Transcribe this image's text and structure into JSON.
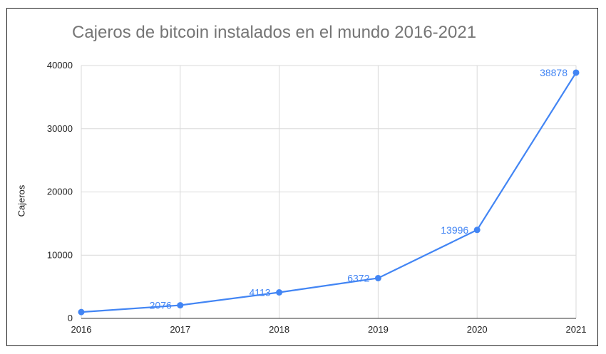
{
  "chart_data": {
    "type": "line",
    "title": "Cajeros de bitcoin instalados en el mundo 2016-2021",
    "xlabel": "",
    "ylabel": "Cajeros",
    "categories": [
      "2016",
      "2017",
      "2018",
      "2019",
      "2020",
      "2021"
    ],
    "series": [
      {
        "values": [
          1000,
          2076,
          4113,
          6372,
          13996,
          38878
        ],
        "data_labels": [
          "",
          "2076",
          "4113",
          "6372",
          "13996",
          "38878"
        ]
      }
    ],
    "ylim": [
      0,
      40000
    ],
    "yticks": [
      "0",
      "10000",
      "20000",
      "30000",
      "40000"
    ],
    "grid": true,
    "line_color": "#4285f4",
    "grid_color": "#d9d9d9"
  }
}
